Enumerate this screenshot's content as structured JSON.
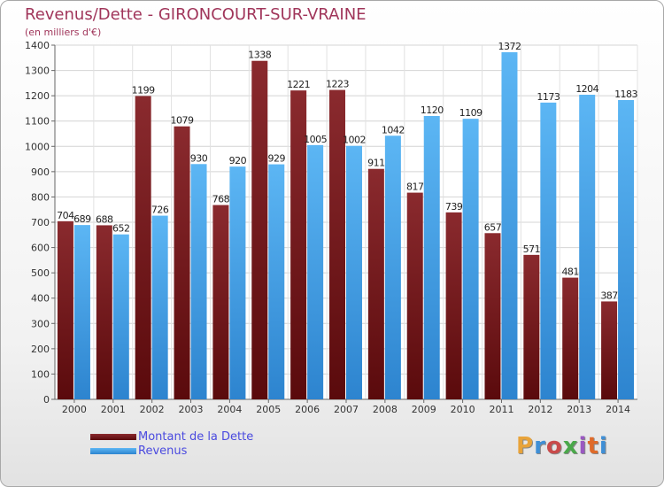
{
  "title": "Revenus/Dette - GIRONCOURT-SUR-VRAINE",
  "subtitle": "(en milliers d'€)",
  "logo": {
    "text": "Proxiti",
    "colors": [
      "#e8a33a",
      "#3f8fd6",
      "#c94a4a",
      "#4aa84a",
      "#9a58c2",
      "#e06b2a",
      "#3f8fd6"
    ]
  },
  "chart_data": {
    "type": "bar",
    "categories": [
      "2000",
      "2001",
      "2002",
      "2003",
      "2004",
      "2005",
      "2006",
      "2007",
      "2008",
      "2009",
      "2010",
      "2011",
      "2012",
      "2013",
      "2014"
    ],
    "series": [
      {
        "name": "Montant de la Dette",
        "color": "#7a1e22",
        "values": [
          704,
          688,
          1199,
          1079,
          768,
          1338,
          1221,
          1223,
          911,
          817,
          739,
          657,
          571,
          481,
          387
        ]
      },
      {
        "name": "Revenus",
        "color": "#4aa3e8",
        "values": [
          689,
          652,
          726,
          930,
          920,
          929,
          1005,
          1002,
          1042,
          1120,
          1109,
          1372,
          1173,
          1204,
          1183
        ]
      }
    ],
    "ylim": [
      0,
      1400
    ],
    "yticks": [
      0,
      100,
      200,
      300,
      400,
      500,
      600,
      700,
      800,
      900,
      1000,
      1100,
      1200,
      1300,
      1400
    ],
    "grid": true,
    "legend": "bottom-left"
  }
}
